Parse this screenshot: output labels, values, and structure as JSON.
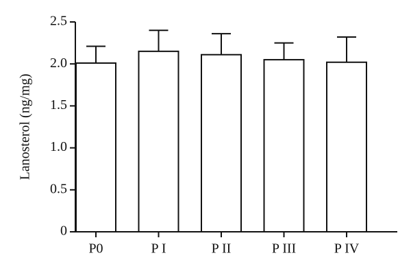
{
  "chart_data": {
    "type": "bar",
    "y_label": "Lanosterol (ng/mg)",
    "categories": [
      "P0",
      "P I",
      "P II",
      "P III",
      "P IV"
    ],
    "values": [
      2.01,
      2.15,
      2.11,
      2.05,
      2.02
    ],
    "errors": [
      0.2,
      0.25,
      0.25,
      0.2,
      0.3
    ],
    "color": "#ffffff",
    "ylim": [
      0,
      2.5
    ],
    "yticks": [
      0,
      0.5,
      {
        "value": 1,
        "label": "1.0"
      },
      1.5,
      {
        "value": 2,
        "label": "2.0"
      },
      2.5
    ]
  }
}
